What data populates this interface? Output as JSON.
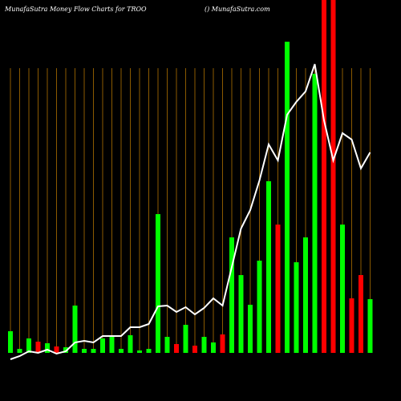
{
  "chart_data": {
    "type": "bar",
    "title": "MunafaSutra  Money Flow  Charts for TROO",
    "subtitle": "() MunafaSutra.com",
    "categories": [
      null,
      null,
      null,
      null,
      null,
      null,
      null,
      null,
      null,
      null,
      null,
      null,
      null,
      null,
      null,
      null,
      null,
      null,
      null,
      null,
      null,
      null,
      null,
      null,
      null,
      null,
      null,
      null,
      null,
      null,
      null,
      null,
      null,
      null,
      null,
      null,
      null,
      null,
      null,
      null
    ],
    "series": [
      {
        "values": [
          27,
          5,
          18,
          14,
          12,
          8,
          7,
          59,
          5,
          5,
          18,
          20,
          5,
          22,
          3,
          5,
          173,
          20,
          11,
          35,
          9,
          20,
          13,
          23,
          144,
          97,
          60,
          115,
          214,
          160,
          388,
          113,
          144,
          348,
          440,
          440,
          160,
          68,
          97,
          67
        ],
        "colors": [
          "#00ff00",
          "#00ff00",
          "#00ff00",
          "#ff0000",
          "#00ff00",
          "#ff0000",
          "#00ff00",
          "#00ff00",
          "#00ff00",
          "#00ff00",
          "#00ff00",
          "#00ff00",
          "#00ff00",
          "#00ff00",
          "#00ff00",
          "#00ff00",
          "#00ff00",
          "#00ff00",
          "#ff0000",
          "#00ff00",
          "#ff0000",
          "#00ff00",
          "#00ff00",
          "#ff0000",
          "#00ff00",
          "#00ff00",
          "#00ff00",
          "#00ff00",
          "#00ff00",
          "#ff0000",
          "#00ff00",
          "#00ff00",
          "#00ff00",
          "#00ff00",
          "#ff0000",
          "#ff0000",
          "#00ff00",
          "#ff0000",
          "#ff0000",
          "#00ff00"
        ]
      },
      {
        "values": [
          -8,
          -4,
          2,
          0,
          4,
          -1,
          2,
          13,
          15,
          13,
          21,
          21,
          21,
          32,
          32,
          36,
          58,
          59,
          51,
          57,
          48,
          56,
          68,
          59,
          107,
          155,
          178,
          215,
          260,
          240,
          297,
          313,
          326,
          360,
          290,
          240,
          274,
          266,
          230,
          250
        ],
        "color": "#ffffff"
      }
    ],
    "ylim": [
      0,
      440
    ],
    "grid": true,
    "grid_color": "#8b5a00"
  }
}
